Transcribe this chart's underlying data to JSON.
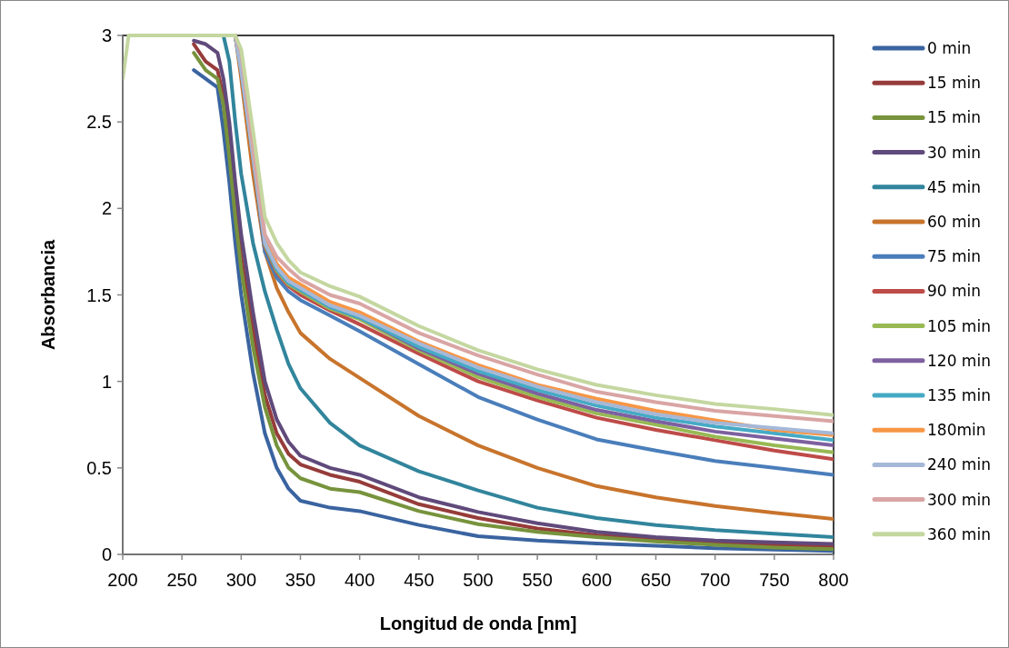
{
  "chart_data": {
    "type": "line",
    "xlabel": "Longitud de onda [nm]",
    "ylabel": "Absorbancia",
    "xlim": [
      200,
      800
    ],
    "ylim": [
      0,
      3
    ],
    "xticks": [
      200,
      250,
      300,
      350,
      400,
      450,
      500,
      550,
      600,
      650,
      700,
      750,
      800
    ],
    "yticks": [
      0,
      0.5,
      1,
      1.5,
      2,
      2.5,
      3
    ],
    "legend": "right",
    "x": [
      200,
      205,
      210,
      250,
      260,
      270,
      280,
      285,
      290,
      295,
      300,
      310,
      320,
      330,
      340,
      350,
      375,
      400,
      450,
      500,
      550,
      600,
      650,
      700,
      750,
      800
    ],
    "series": [
      {
        "name": "0 min",
        "color": "#3a64a0",
        "values": [
          null,
          null,
          null,
          null,
          2.8,
          2.75,
          2.7,
          2.45,
          2.15,
          1.8,
          1.5,
          1.05,
          0.7,
          0.5,
          0.38,
          0.31,
          0.27,
          0.25,
          0.17,
          0.105,
          0.08,
          0.063,
          0.05,
          0.035,
          0.027,
          0.02
        ]
      },
      {
        "name": "15 min",
        "color": "#963c3a",
        "values": [
          null,
          null,
          null,
          null,
          2.95,
          2.85,
          2.8,
          2.65,
          2.4,
          2.0,
          1.72,
          1.3,
          0.92,
          0.7,
          0.58,
          0.52,
          0.46,
          0.42,
          0.29,
          0.21,
          0.15,
          0.11,
          0.085,
          0.065,
          0.055,
          0.045
        ]
      },
      {
        "name": "15 min",
        "color": "#77933c",
        "values": [
          null,
          null,
          null,
          null,
          2.9,
          2.8,
          2.75,
          2.6,
          2.3,
          1.95,
          1.65,
          1.2,
          0.85,
          0.63,
          0.5,
          0.44,
          0.38,
          0.36,
          0.25,
          0.175,
          0.13,
          0.1,
          0.075,
          0.055,
          0.04,
          0.03
        ]
      },
      {
        "name": "30 min",
        "color": "#604a7b",
        "values": [
          null,
          null,
          null,
          null,
          2.97,
          2.95,
          2.9,
          2.75,
          2.5,
          2.15,
          1.85,
          1.4,
          1.0,
          0.78,
          0.65,
          0.57,
          0.5,
          0.46,
          0.33,
          0.245,
          0.18,
          0.13,
          0.1,
          0.08,
          0.07,
          0.06
        ]
      },
      {
        "name": "45 min",
        "color": "#31859c",
        "values": [
          null,
          null,
          null,
          null,
          null,
          null,
          null,
          3,
          2.85,
          2.5,
          2.2,
          1.8,
          1.52,
          1.3,
          1.1,
          0.96,
          0.76,
          0.63,
          0.48,
          0.37,
          0.27,
          0.21,
          0.17,
          0.14,
          0.12,
          0.1
        ]
      },
      {
        "name": "60 min",
        "color": "#c8742c",
        "values": [
          null,
          null,
          null,
          null,
          null,
          null,
          null,
          null,
          null,
          3,
          2.75,
          2.2,
          1.75,
          1.54,
          1.4,
          1.28,
          1.13,
          1.02,
          0.8,
          0.63,
          0.5,
          0.395,
          0.33,
          0.28,
          0.24,
          0.205
        ]
      },
      {
        "name": "75 min",
        "color": "#4a7ebb",
        "values": [
          null,
          null,
          null,
          null,
          null,
          null,
          null,
          null,
          null,
          3,
          2.8,
          2.3,
          1.75,
          1.6,
          1.52,
          1.47,
          1.38,
          1.29,
          1.1,
          0.91,
          0.78,
          0.665,
          0.6,
          0.54,
          0.5,
          0.46
        ]
      },
      {
        "name": "90 min",
        "color": "#be4b48",
        "values": [
          null,
          null,
          null,
          null,
          null,
          null,
          null,
          null,
          null,
          3,
          2.8,
          2.3,
          1.78,
          1.63,
          1.55,
          1.5,
          1.41,
          1.33,
          1.16,
          1.0,
          0.89,
          0.79,
          0.72,
          0.66,
          0.6,
          0.55
        ]
      },
      {
        "name": "105 min",
        "color": "#98b954",
        "values": [
          null,
          null,
          null,
          null,
          null,
          null,
          null,
          null,
          null,
          3,
          2.8,
          2.3,
          1.79,
          1.64,
          1.56,
          1.52,
          1.42,
          1.36,
          1.18,
          1.025,
          0.91,
          0.815,
          0.75,
          0.68,
          0.63,
          0.59
        ]
      },
      {
        "name": "120 min",
        "color": "#7d60a0",
        "values": [
          null,
          null,
          null,
          null,
          null,
          null,
          null,
          null,
          null,
          3,
          2.8,
          2.3,
          1.8,
          1.65,
          1.57,
          1.53,
          1.43,
          1.37,
          1.19,
          1.045,
          0.93,
          0.835,
          0.77,
          0.71,
          0.67,
          0.63
        ]
      },
      {
        "name": "135 min",
        "color": "#46aac5",
        "values": [
          null,
          null,
          null,
          null,
          null,
          null,
          null,
          null,
          null,
          3,
          2.8,
          2.3,
          1.8,
          1.65,
          1.57,
          1.53,
          1.43,
          1.37,
          1.2,
          1.06,
          0.95,
          0.86,
          0.79,
          0.74,
          0.7,
          0.66
        ]
      },
      {
        "name": "180min",
        "color": "#f79646",
        "values": [
          null,
          null,
          null,
          null,
          null,
          null,
          null,
          null,
          null,
          3,
          2.82,
          2.32,
          1.82,
          1.68,
          1.6,
          1.56,
          1.46,
          1.4,
          1.23,
          1.095,
          0.98,
          0.9,
          0.83,
          0.775,
          0.72,
          0.69
        ]
      },
      {
        "name": "240 min",
        "color": "#a5b8d8",
        "values": [
          null,
          null,
          null,
          null,
          null,
          null,
          null,
          null,
          null,
          3,
          2.8,
          2.3,
          1.8,
          1.66,
          1.58,
          1.54,
          1.44,
          1.38,
          1.22,
          1.08,
          0.97,
          0.88,
          0.81,
          0.76,
          0.73,
          0.7
        ]
      },
      {
        "name": "300 min",
        "color": "#d9a5a4",
        "values": [
          null,
          null,
          null,
          null,
          null,
          null,
          null,
          null,
          null,
          3,
          2.9,
          2.35,
          1.85,
          1.72,
          1.65,
          1.59,
          1.5,
          1.45,
          1.28,
          1.15,
          1.04,
          0.94,
          0.88,
          0.83,
          0.8,
          0.77
        ]
      },
      {
        "name": "360 min",
        "color": "#c4d7a0",
        "values": [
          2.75,
          3,
          3,
          3,
          3,
          3,
          3,
          3,
          3,
          3,
          2.92,
          2.45,
          1.95,
          1.8,
          1.7,
          1.63,
          1.55,
          1.49,
          1.32,
          1.18,
          1.07,
          0.98,
          0.92,
          0.87,
          0.84,
          0.805
        ]
      }
    ]
  }
}
